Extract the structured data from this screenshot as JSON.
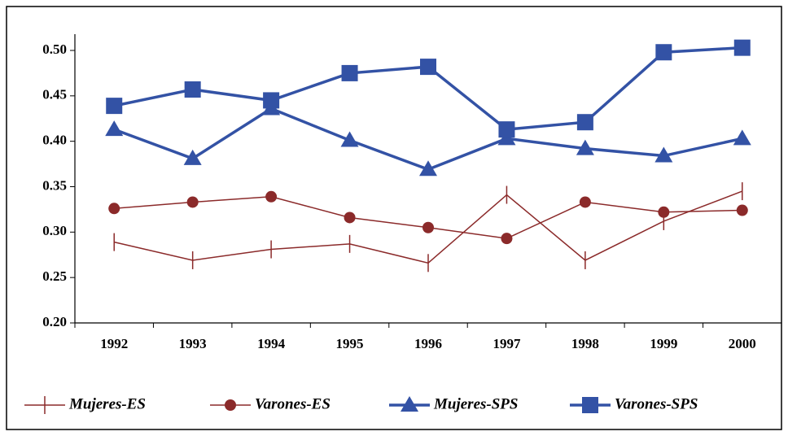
{
  "chart_data": {
    "type": "line",
    "categories": [
      "1992",
      "1993",
      "1994",
      "1995",
      "1996",
      "1997",
      "1998",
      "1999",
      "2000"
    ],
    "ylim": [
      0.2,
      0.5
    ],
    "yticks": [
      {
        "value": 0.2,
        "label": "0.20"
      },
      {
        "value": 0.25,
        "label": "0.25"
      },
      {
        "value": 0.3,
        "label": "0.30"
      },
      {
        "value": 0.35,
        "label": "0.35"
      },
      {
        "value": 0.4,
        "label": "0.40"
      },
      {
        "value": 0.45,
        "label": "0.45"
      },
      {
        "value": 0.5,
        "label": "0.50"
      }
    ],
    "legend": "bottom",
    "series": [
      {
        "name": "Mujeres-ES",
        "color": "#8b2a2a",
        "marker": "tick",
        "values": [
          0.289,
          0.269,
          0.281,
          0.287,
          0.266,
          0.341,
          0.269,
          0.312,
          0.345
        ]
      },
      {
        "name": "Varones-ES",
        "color": "#8b2a2a",
        "marker": "circle",
        "values": [
          0.326,
          0.333,
          0.339,
          0.316,
          0.305,
          0.293,
          0.333,
          0.322,
          0.324
        ]
      },
      {
        "name": "Mujeres-SPS",
        "color": "#3352a5",
        "marker": "triangle",
        "values": [
          0.413,
          0.381,
          0.436,
          0.401,
          0.369,
          0.403,
          0.392,
          0.384,
          0.403
        ]
      },
      {
        "name": "Varones-SPS",
        "color": "#3352a5",
        "marker": "square",
        "values": [
          0.439,
          0.457,
          0.445,
          0.475,
          0.482,
          0.413,
          0.421,
          0.498,
          0.503
        ]
      }
    ]
  }
}
